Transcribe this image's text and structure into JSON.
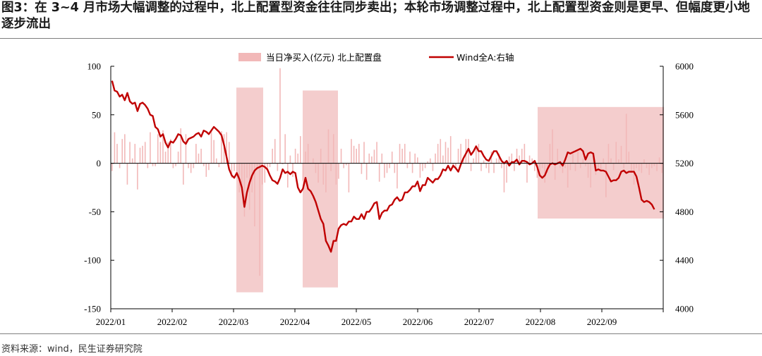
{
  "title": "图3：在 3~4 月市场大幅调整的过程中，北上配置型资金往往同步卖出；本轮市场调整过程中，北上配置型资金则是更早、但幅度更小地逐步流出",
  "source": "资料来源：wind，民生证券研究院",
  "colors": {
    "line": "#c00000",
    "bar": "#f2b8b8",
    "shade": "#f2c4c4"
  },
  "chart_data": {
    "type": "bar+line",
    "legend_position": "top",
    "x_tick_labels": [
      "2022/01",
      "2022/02",
      "2022/03",
      "2022/04",
      "2022/05",
      "2022/06",
      "2022/07",
      "2022/08",
      "2022/09"
    ],
    "left_axis": {
      "ylim": [
        -150,
        100
      ],
      "ticks": [
        "100",
        "50",
        "0",
        "-50",
        "-100",
        "-150"
      ]
    },
    "right_axis": {
      "ylim": [
        4000,
        6000
      ],
      "ticks": [
        "6000",
        "5600",
        "5200",
        "4800",
        "4400",
        "4000"
      ]
    },
    "series": [
      {
        "name": "当日净买入(亿元) 北上配置盘",
        "type": "bar",
        "axis": "left",
        "values": [
          -8,
          32,
          20,
          -5,
          25,
          30,
          -22,
          22,
          5,
          20,
          -27,
          16,
          18,
          22,
          -5,
          32,
          -3,
          -3,
          30,
          22,
          34,
          12,
          22,
          25,
          -5,
          -3,
          12,
          36,
          -22,
          30,
          -5,
          -10,
          -5,
          20,
          10,
          15,
          -3,
          -14,
          -7,
          33,
          24,
          5,
          -4,
          33,
          30,
          32,
          22,
          -15,
          -8,
          -10,
          -30,
          -25,
          -55,
          -15,
          -48,
          -30,
          -65,
          -4,
          -116,
          -22,
          -20,
          -6,
          -4,
          15,
          25,
          -8,
          98,
          -1,
          30,
          -25,
          8,
          -14,
          15,
          10,
          28,
          -18,
          12,
          20,
          0,
          5,
          -10,
          -20,
          15,
          -22,
          -30,
          35,
          -8,
          30,
          -22,
          -16,
          15,
          -5,
          -2,
          -30,
          25,
          18,
          15,
          20,
          -11,
          22,
          -17,
          10,
          7,
          14,
          22,
          -19,
          10,
          -15,
          -10,
          -5,
          12,
          -10,
          -26,
          20,
          15,
          20,
          -5,
          12,
          -10,
          10,
          6,
          -15,
          -8,
          -5,
          2,
          5,
          -8,
          10,
          20,
          25,
          8,
          22,
          16,
          28,
          -5,
          -6,
          15,
          20,
          5,
          25,
          25,
          -8,
          5,
          15,
          20,
          -8,
          3,
          -5,
          -10,
          12,
          -10,
          5,
          10,
          -5,
          -30,
          -20,
          7,
          10,
          -8,
          15,
          8,
          15,
          20,
          -20,
          8,
          5,
          -8,
          -15,
          -10,
          -5,
          -20,
          -10,
          20,
          35,
          -17,
          15,
          -5,
          -10,
          -5,
          -25,
          -7,
          10,
          -8,
          12,
          -5,
          5,
          -3,
          -15,
          -25,
          5,
          -12,
          -5,
          -8,
          5,
          -35,
          20,
          5,
          -7,
          22,
          4,
          18,
          -5,
          51,
          12,
          -10,
          -22,
          -5,
          -8,
          -10,
          4,
          -5,
          -12,
          -5,
          -3,
          -8,
          6,
          -10
        ]
      },
      {
        "name": "Wind全A:右轴",
        "type": "line",
        "axis": "right",
        "values": [
          5880,
          5800,
          5790,
          5750,
          5765,
          5720,
          5780,
          5710,
          5690,
          5700,
          5630,
          5690,
          5700,
          5680,
          5650,
          5600,
          5590,
          5500,
          5480,
          5420,
          5440,
          5370,
          5330,
          5380,
          5370,
          5400,
          5440,
          5430,
          5380,
          5360,
          5400,
          5410,
          5420,
          5440,
          5450,
          5420,
          5470,
          5460,
          5440,
          5470,
          5500,
          5480,
          5460,
          5430,
          5350,
          5250,
          5150,
          5100,
          5080,
          5120,
          5070,
          5000,
          4840,
          4960,
          5040,
          5100,
          5140,
          5160,
          5170,
          5180,
          5170,
          5150,
          5100,
          5060,
          5050,
          5030,
          5080,
          5150,
          5120,
          5130,
          5110,
          5130,
          5120,
          5000,
          4960,
          4990,
          5080,
          4990,
          4970,
          4930,
          4880,
          4810,
          4740,
          4700,
          4560,
          4520,
          4470,
          4560,
          4560,
          4660,
          4690,
          4700,
          4690,
          4720,
          4720,
          4760,
          4740,
          4740,
          4780,
          4740,
          4800,
          4800,
          4830,
          4870,
          4880,
          4740,
          4790,
          4810,
          4810,
          4850,
          4860,
          4900,
          4920,
          4890,
          4900,
          4960,
          4960,
          4980,
          5010,
          5010,
          5050,
          4970,
          5020,
          5020,
          5080,
          5060,
          5040,
          5070,
          5070,
          5100,
          5150,
          5140,
          5180,
          5140,
          5180,
          5160,
          5130,
          5190,
          5240,
          5280,
          5320,
          5270,
          5300,
          5340,
          5300,
          5300,
          5260,
          5230,
          5220,
          5260,
          5300,
          5300,
          5260,
          5220,
          5200,
          5220,
          5180,
          5210,
          5210,
          5230,
          5190,
          5220,
          5220,
          5210,
          5190,
          5200,
          5220,
          5170,
          5100,
          5080,
          5100,
          5150,
          5190,
          5200,
          5190,
          5200,
          5210,
          5180,
          5230,
          5290,
          5280,
          5290,
          5300,
          5310,
          5320,
          5300,
          5230,
          5280,
          5290,
          5280,
          5140,
          5150,
          5140,
          5140,
          5130,
          5090,
          5050,
          5060,
          5060,
          5080,
          5130,
          5140,
          5120,
          5130,
          5130,
          5130,
          5090,
          5000,
          4900,
          4880,
          4890,
          4880,
          4860,
          4820
        ]
      }
    ],
    "shaded_periods_value_range_left_axis": [
      [
        -133,
        78
      ],
      [
        -128,
        75
      ],
      [
        -57,
        58
      ]
    ]
  }
}
